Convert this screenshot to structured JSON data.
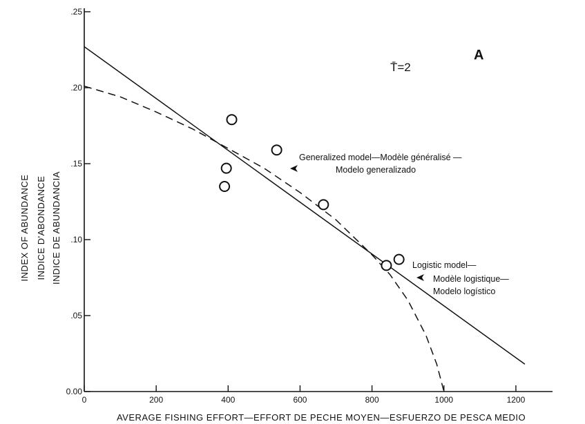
{
  "chart_data": {
    "type": "scatter",
    "panel_label": "A",
    "parameter_label": "T̄=2",
    "xlabel": "AVERAGE FISHING EFFORT—EFFORT DE PECHE MOYEN—ESFUERZO DE PESCA MEDIO",
    "ylabel_lines": [
      "INDEX OF ABUNDANCE",
      "INDICE D'ABONDANCE",
      "INDICE DE ABUNDANCIA"
    ],
    "xlim": [
      0,
      1300
    ],
    "ylim": [
      0,
      0.25
    ],
    "x_ticks": [
      0,
      200,
      400,
      600,
      800,
      1000,
      1200
    ],
    "x_tick_labels": [
      "0",
      "200",
      "400",
      "600",
      "800",
      "1000",
      "1200"
    ],
    "y_ticks": [
      0,
      0.05,
      0.1,
      0.15,
      0.2,
      0.25
    ],
    "y_tick_labels": [
      "0.00",
      ".05",
      ".10",
      ".15",
      ".20",
      ".25"
    ],
    "grid": false,
    "observations": {
      "x": [
        390,
        395,
        410,
        535,
        665,
        840,
        875
      ],
      "y": [
        0.135,
        0.147,
        0.179,
        0.159,
        0.123,
        0.083,
        0.087
      ]
    },
    "logistic_model": {
      "type": "line",
      "x": [
        0,
        1225
      ],
      "y": [
        0.227,
        0.018
      ],
      "label_lines": [
        "Logistic model—",
        "Modèle logistique—",
        "Modelo logístico"
      ]
    },
    "generalized_model": {
      "type": "line",
      "dashed": true,
      "x": [
        0,
        100,
        200,
        300,
        400,
        500,
        600,
        700,
        800,
        850,
        900,
        950,
        980,
        1000
      ],
      "y": [
        0.201,
        0.194,
        0.184,
        0.173,
        0.16,
        0.147,
        0.131,
        0.113,
        0.09,
        0.077,
        0.06,
        0.037,
        0.018,
        0.0
      ],
      "label_lines": [
        "Generalized model—Modèle généralisé —",
        "Modelo generalizado"
      ]
    }
  }
}
